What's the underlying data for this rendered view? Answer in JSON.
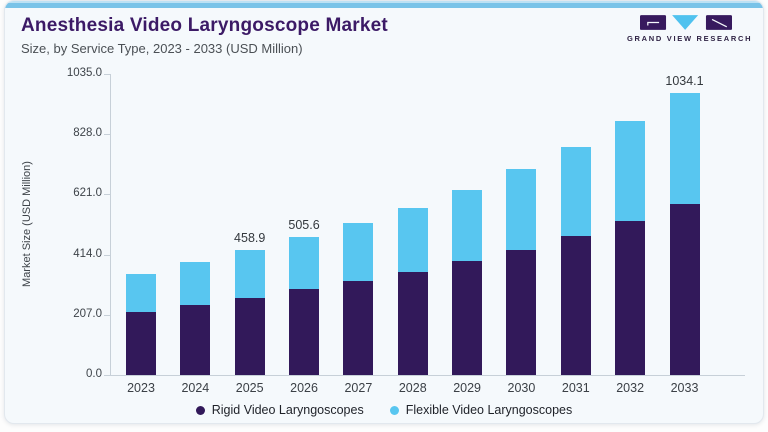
{
  "header": {
    "title": "Anesthesia Video Laryngoscope Market",
    "subtitle": "Size, by Service Type, 2023 - 2033 (USD Million)"
  },
  "brand": {
    "name": "GRAND VIEW RESEARCH"
  },
  "colors": {
    "rigid": "#32195a",
    "flexible": "#58c6f0",
    "title_purple": "#3c1a66",
    "top_strip_blue": "#79c3e8",
    "axis_gray": "#c7d0d8",
    "card_background": "#f5f9fc",
    "logo_purple": "#371a5e",
    "logo_blue": "#4fc2ef"
  },
  "chart_data": {
    "type": "bar",
    "stacked": true,
    "title": "Anesthesia Video Laryngoscope Market",
    "subtitle": "Size, by Service Type, 2023 - 2033 (USD Million)",
    "xlabel": "",
    "ylabel": "Market Size (USD Million)",
    "ylim": [
      0,
      1035
    ],
    "yticks": [
      "0.0",
      "207.0",
      "414.0",
      "621.0",
      "828.0",
      "1035.0"
    ],
    "grid": false,
    "legend_position": "bottom-center",
    "categories": [
      "2023",
      "2024",
      "2025",
      "2026",
      "2027",
      "2028",
      "2029",
      "2030",
      "2031",
      "2032",
      "2033"
    ],
    "series": [
      {
        "name": "Rigid Video Laryngoscopes",
        "color": "#32195a",
        "values": [
          230,
          257,
          282,
          314,
          344,
          376,
          418,
          460,
          510,
          564,
          628
        ]
      },
      {
        "name": "Flexible Video Laryngoscopes",
        "color": "#58c6f0",
        "values": [
          141,
          159,
          176.9,
          191.6,
          213,
          237,
          262,
          297,
          326,
          367,
          406.1
        ]
      }
    ],
    "totals": [
      371,
      416,
      458.9,
      505.6,
      557,
      613,
      680,
      757,
      836,
      931,
      1034.1
    ],
    "data_labels": {
      "2025": "458.9",
      "2026": "505.6",
      "2033": "1034.1"
    }
  }
}
